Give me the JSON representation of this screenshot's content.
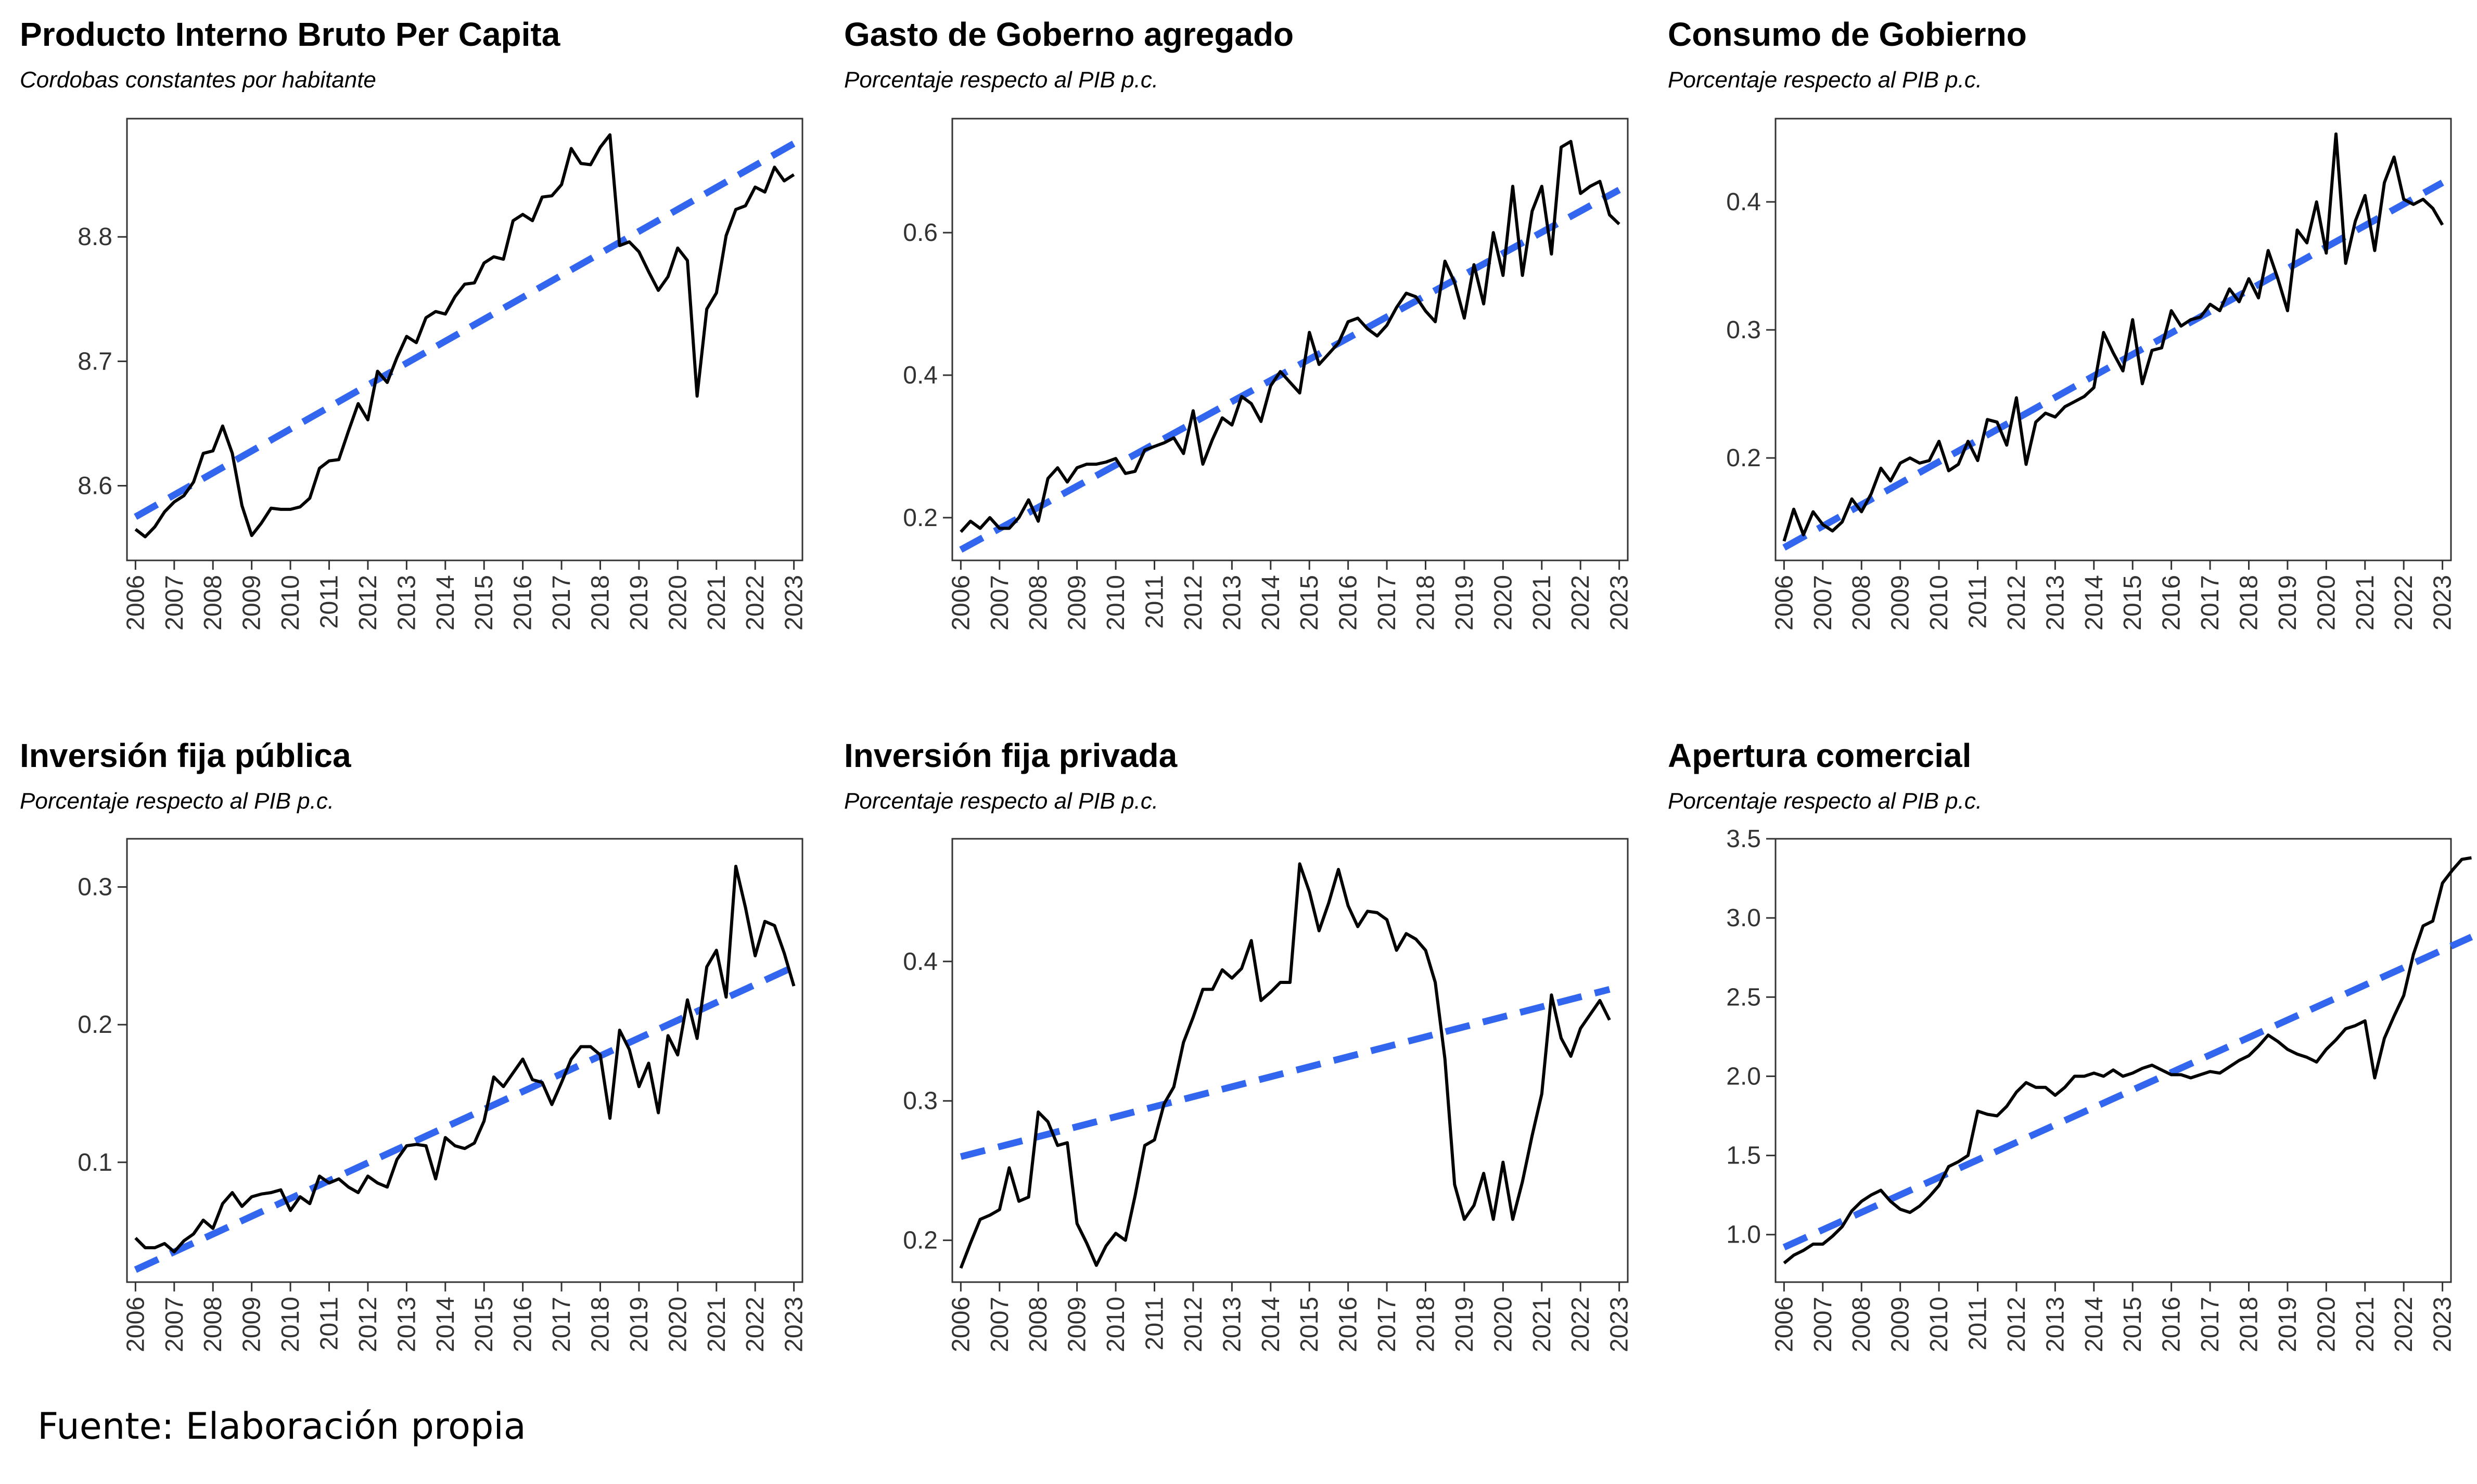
{
  "footer": "Fuente: Elaboración propia",
  "colors": {
    "series": "#000000",
    "trend": "#3366EE",
    "axis": "#333333",
    "text": "#333333"
  },
  "chart_data": [
    {
      "type": "line",
      "title": "Producto Interno Bruto Per Capita",
      "subtitle": "Cordobas constantes por habitante",
      "x_start": 2006.0,
      "x_step": 0.25,
      "xticks": [
        "2006",
        "2007",
        "2008",
        "2009",
        "2010",
        "2011",
        "2012",
        "2013",
        "2014",
        "2015",
        "2016",
        "2017",
        "2018",
        "2019",
        "2020",
        "2021",
        "2022",
        "2023"
      ],
      "ylim": [
        8.54,
        8.895
      ],
      "yticks": [
        8.6,
        8.7,
        8.8
      ],
      "grid": false,
      "series": [
        {
          "values": [
            8.565,
            8.559,
            8.567,
            8.579,
            8.587,
            8.592,
            8.603,
            8.626,
            8.628,
            8.648,
            8.626,
            8.584,
            8.56,
            8.57,
            8.582,
            8.581,
            8.581,
            8.583,
            8.59,
            8.614,
            8.62,
            8.621,
            8.644,
            8.666,
            8.653,
            8.692,
            8.683,
            8.703,
            8.72,
            8.715,
            8.735,
            8.74,
            8.738,
            8.752,
            8.762,
            8.763,
            8.779,
            8.784,
            8.782,
            8.813,
            8.818,
            8.813,
            8.832,
            8.833,
            8.842,
            8.871,
            8.859,
            8.858,
            8.872,
            8.882,
            8.793,
            8.796,
            8.788,
            8.772,
            8.757,
            8.768,
            8.791,
            8.781,
            8.672,
            8.742,
            8.755,
            8.801,
            8.822,
            8.825,
            8.84,
            8.836,
            8.856,
            8.845,
            8.85
          ]
        },
        {
          "name": "",
          "trend": [
            8.575,
            8.875
          ]
        }
      ]
    },
    {
      "type": "line",
      "title": "Gasto de Goberno agregado",
      "subtitle": "Porcentaje respecto al PIB p.c.",
      "x_start": 2006.0,
      "x_step": 0.25,
      "xticks": [
        "2006",
        "2007",
        "2008",
        "2009",
        "2010",
        "2011",
        "2012",
        "2013",
        "2014",
        "2015",
        "2016",
        "2017",
        "2018",
        "2019",
        "2020",
        "2021",
        "2022",
        "2023"
      ],
      "ylim": [
        0.14,
        0.76
      ],
      "yticks": [
        0.2,
        0.4,
        0.6
      ],
      "grid": false,
      "series": [
        {
          "values": [
            0.18,
            0.195,
            0.185,
            0.2,
            0.185,
            0.185,
            0.2,
            0.225,
            0.195,
            0.255,
            0.27,
            0.25,
            0.27,
            0.275,
            0.275,
            0.278,
            0.283,
            0.262,
            0.265,
            0.295,
            0.3,
            0.305,
            0.312,
            0.29,
            0.35,
            0.275,
            0.31,
            0.34,
            0.33,
            0.37,
            0.36,
            0.335,
            0.385,
            0.405,
            0.39,
            0.375,
            0.46,
            0.415,
            0.43,
            0.445,
            0.475,
            0.48,
            0.465,
            0.455,
            0.47,
            0.495,
            0.515,
            0.51,
            0.49,
            0.475,
            0.56,
            0.53,
            0.48,
            0.555,
            0.5,
            0.6,
            0.54,
            0.665,
            0.54,
            0.63,
            0.665,
            0.57,
            0.72,
            0.728,
            0.655,
            0.665,
            0.672,
            0.625,
            0.612
          ]
        },
        {
          "name": "",
          "trend": [
            0.155,
            0.66
          ]
        }
      ]
    },
    {
      "type": "line",
      "title": "Consumo de Gobierno",
      "subtitle": "Porcentaje respecto al PIB p.c.",
      "x_start": 2006.0,
      "x_step": 0.25,
      "xticks": [
        "2006",
        "2007",
        "2008",
        "2009",
        "2010",
        "2011",
        "2012",
        "2013",
        "2014",
        "2015",
        "2016",
        "2017",
        "2018",
        "2019",
        "2020",
        "2021",
        "2022",
        "2023"
      ],
      "ylim": [
        0.12,
        0.465
      ],
      "yticks": [
        0.2,
        0.3,
        0.4
      ],
      "grid": false,
      "series": [
        {
          "values": [
            0.135,
            0.16,
            0.14,
            0.158,
            0.148,
            0.143,
            0.15,
            0.168,
            0.158,
            0.172,
            0.192,
            0.182,
            0.196,
            0.2,
            0.196,
            0.198,
            0.213,
            0.19,
            0.195,
            0.213,
            0.198,
            0.23,
            0.228,
            0.21,
            0.247,
            0.195,
            0.228,
            0.235,
            0.232,
            0.24,
            0.244,
            0.248,
            0.255,
            0.298,
            0.282,
            0.268,
            0.308,
            0.258,
            0.284,
            0.286,
            0.315,
            0.303,
            0.308,
            0.31,
            0.32,
            0.315,
            0.332,
            0.322,
            0.34,
            0.325,
            0.362,
            0.34,
            0.315,
            0.378,
            0.368,
            0.4,
            0.36,
            0.453,
            0.352,
            0.385,
            0.405,
            0.362,
            0.415,
            0.435,
            0.402,
            0.398,
            0.402,
            0.395,
            0.382
          ]
        },
        {
          "name": "",
          "trend": [
            0.13,
            0.415
          ]
        }
      ]
    },
    {
      "type": "line",
      "title": "Inversión fija pública",
      "subtitle": "Porcentaje respecto al PIB p.c.",
      "x_start": 2006.0,
      "x_step": 0.25,
      "xticks": [
        "2006",
        "2007",
        "2008",
        "2009",
        "2010",
        "2011",
        "2012",
        "2013",
        "2014",
        "2015",
        "2016",
        "2017",
        "2018",
        "2019",
        "2020",
        "2021",
        "2022",
        "2023"
      ],
      "ylim": [
        0.013,
        0.335
      ],
      "yticks": [
        0.1,
        0.2,
        0.3
      ],
      "grid": false,
      "series": [
        {
          "values": [
            0.045,
            0.038,
            0.038,
            0.041,
            0.035,
            0.043,
            0.048,
            0.058,
            0.052,
            0.07,
            0.078,
            0.068,
            0.075,
            0.077,
            0.078,
            0.08,
            0.065,
            0.075,
            0.07,
            0.09,
            0.085,
            0.088,
            0.082,
            0.078,
            0.09,
            0.085,
            0.082,
            0.102,
            0.112,
            0.113,
            0.112,
            0.088,
            0.118,
            0.112,
            0.11,
            0.114,
            0.13,
            0.162,
            0.155,
            0.165,
            0.175,
            0.16,
            0.158,
            0.142,
            0.158,
            0.175,
            0.184,
            0.184,
            0.178,
            0.132,
            0.196,
            0.182,
            0.155,
            0.172,
            0.136,
            0.192,
            0.178,
            0.218,
            0.19,
            0.242,
            0.254,
            0.22,
            0.315,
            0.285,
            0.25,
            0.275,
            0.272,
            0.252,
            0.228
          ]
        },
        {
          "name": "",
          "trend": [
            0.022,
            0.242
          ]
        }
      ]
    },
    {
      "type": "line",
      "title": "Inversión fija privada",
      "subtitle": "Porcentaje respecto al PIB p.c.",
      "x_start": 2006.0,
      "x_step": 0.25,
      "xticks": [
        "2006",
        "2007",
        "2008",
        "2009",
        "2010",
        "2011",
        "2012",
        "2013",
        "2014",
        "2015",
        "2016",
        "2017",
        "2018",
        "2019",
        "2020",
        "2021",
        "2022",
        "2023"
      ],
      "ylim": [
        0.17,
        0.488
      ],
      "yticks": [
        0.2,
        0.3,
        0.4
      ],
      "grid": false,
      "series": [
        {
          "values": [
            0.18,
            0.198,
            0.215,
            0.218,
            0.222,
            0.252,
            0.228,
            0.231,
            0.292,
            0.285,
            0.268,
            0.27,
            0.212,
            0.198,
            0.182,
            0.196,
            0.205,
            0.2,
            0.232,
            0.268,
            0.272,
            0.298,
            0.31,
            0.342,
            0.36,
            0.38,
            0.38,
            0.394,
            0.388,
            0.395,
            0.415,
            0.372,
            0.378,
            0.385,
            0.385,
            0.47,
            0.45,
            0.422,
            0.442,
            0.466,
            0.44,
            0.425,
            0.436,
            0.435,
            0.43,
            0.408,
            0.42,
            0.416,
            0.408,
            0.385,
            0.33,
            0.24,
            0.215,
            0.225,
            0.248,
            0.215,
            0.256,
            0.215,
            0.242,
            0.275,
            0.305,
            0.376,
            0.345,
            0.332,
            0.352,
            0.362,
            0.372,
            0.358
          ]
        },
        {
          "name": "",
          "trend": [
            0.26,
            0.38
          ]
        }
      ]
    },
    {
      "type": "line",
      "title": "Apertura comercial",
      "subtitle": "Porcentaje respecto al PIB p.c.",
      "x_start": 2006.0,
      "x_step": 0.25,
      "xticks": [
        "2006",
        "2007",
        "2008",
        "2009",
        "2010",
        "2011",
        "2012",
        "2013",
        "2014",
        "2015",
        "2016",
        "2017",
        "2018",
        "2019",
        "2020",
        "2021",
        "2022",
        "2023"
      ],
      "ylim": [
        0.7,
        3.5
      ],
      "yticks": [
        1.0,
        1.5,
        2.0,
        2.5,
        3.0,
        3.5
      ],
      "grid": false,
      "series": [
        {
          "values": [
            0.82,
            0.87,
            0.9,
            0.94,
            0.94,
            0.99,
            1.05,
            1.15,
            1.21,
            1.25,
            1.28,
            1.21,
            1.16,
            1.14,
            1.18,
            1.24,
            1.31,
            1.43,
            1.46,
            1.5,
            1.78,
            1.76,
            1.75,
            1.81,
            1.9,
            1.96,
            1.93,
            1.93,
            1.88,
            1.93,
            2.0,
            2.0,
            2.02,
            2.0,
            2.04,
            2.0,
            2.02,
            2.05,
            2.07,
            2.04,
            2.01,
            2.01,
            1.99,
            2.01,
            2.03,
            2.02,
            2.06,
            2.1,
            2.13,
            2.19,
            2.26,
            2.22,
            2.17,
            2.14,
            2.12,
            2.09,
            2.17,
            2.23,
            2.3,
            2.32,
            2.35,
            1.99,
            2.24,
            2.38,
            2.51,
            2.77,
            2.95,
            2.98,
            3.22,
            3.3,
            3.37,
            3.38
          ]
        },
        {
          "name": "",
          "trend": [
            0.92,
            2.88
          ]
        }
      ]
    }
  ]
}
